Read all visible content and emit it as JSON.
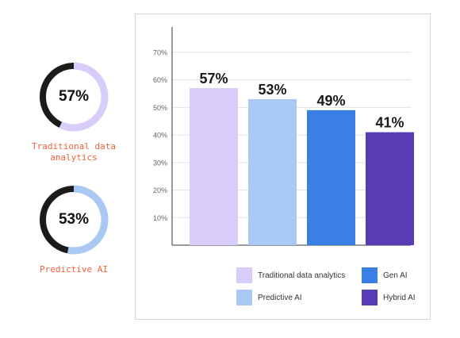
{
  "donuts": [
    {
      "value_text": "57%",
      "fraction": 0.57,
      "label": "Traditional data analytics",
      "color": "#d8cdfa"
    },
    {
      "value_text": "53%",
      "fraction": 0.53,
      "label": "Predictive AI",
      "color": "#a9c8f4"
    }
  ],
  "chart_data": {
    "type": "bar",
    "categories": [
      "Traditional data analytics",
      "Predictive AI",
      "Gen AI",
      "Hybrid AI"
    ],
    "values": [
      57,
      53,
      49,
      41
    ],
    "value_labels": [
      "57%",
      "53%",
      "49%",
      "41%"
    ],
    "colors": [
      "#d8cdfa",
      "#a9c8f4",
      "#3a80e4",
      "#583cb4"
    ],
    "ylim": [
      0,
      70
    ],
    "yticks": [
      10,
      20,
      30,
      40,
      50,
      60,
      70
    ],
    "ytick_labels": [
      "10%",
      "20%",
      "30%",
      "40%",
      "50%",
      "60%",
      "70%"
    ],
    "grid": true,
    "legend": "bottom"
  }
}
